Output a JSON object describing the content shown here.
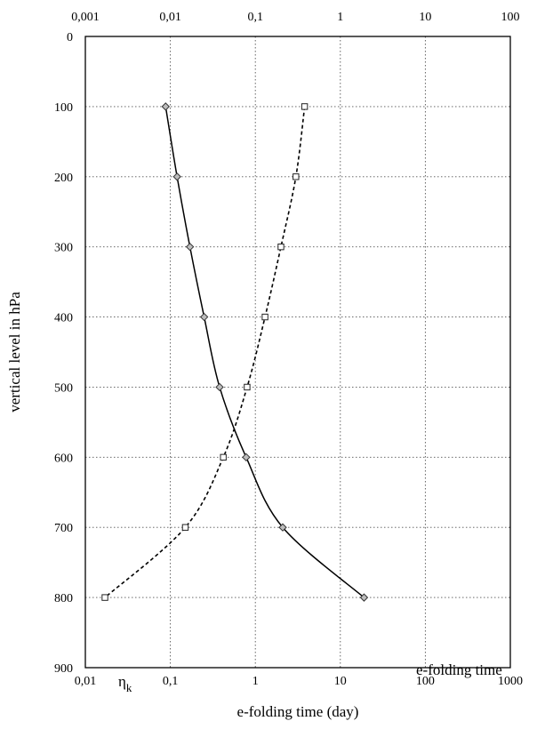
{
  "chart_data": {
    "type": "line",
    "xlabel": "e-folding time (day)",
    "ylabel": "vertical level in hPa",
    "x_scale": "log",
    "xlim_bottom": [
      0.01,
      1000
    ],
    "xlim_top": [
      0.001,
      100
    ],
    "ylim": [
      0,
      900
    ],
    "y_inverted": true,
    "grid": true,
    "bottom_tick_labels": [
      "0,01",
      "0,1",
      "1",
      "10",
      "100",
      "1000"
    ],
    "top_tick_labels": [
      "0,001",
      "0,01",
      "0,1",
      "1",
      "10",
      "100"
    ],
    "y_tick_labels": [
      "0",
      "100",
      "200",
      "300",
      "400",
      "500",
      "600",
      "700",
      "800",
      "900"
    ],
    "series": [
      {
        "name": "e-folding time",
        "axis": "bottom",
        "line_style": "solid",
        "marker": "diamond",
        "color": "#000000",
        "marker_fill": "#bdbdbd",
        "x": [
          0.088,
          0.12,
          0.17,
          0.25,
          0.38,
          0.78,
          2.1,
          19
        ],
        "y": [
          100,
          200,
          300,
          400,
          500,
          600,
          700,
          800
        ]
      },
      {
        "name": "ηk",
        "axis": "top",
        "line_style": "dashed",
        "marker": "square",
        "color": "#000000",
        "marker_fill": "#ffffff",
        "x": [
          0.38,
          0.3,
          0.2,
          0.13,
          0.08,
          0.042,
          0.015,
          0.0017
        ],
        "y": [
          100,
          200,
          300,
          400,
          500,
          600,
          700,
          800
        ]
      }
    ],
    "annotations": [
      {
        "text": "e-folding time",
        "series": 0
      },
      {
        "text": "η",
        "subscript": "k",
        "series": 1
      }
    ]
  }
}
